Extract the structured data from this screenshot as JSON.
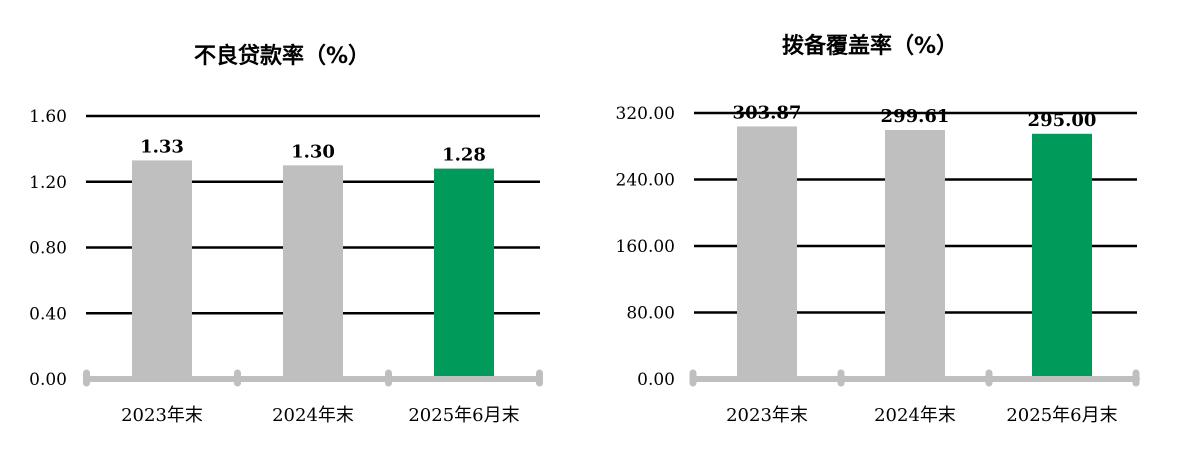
{
  "colors": {
    "highlight": "#009a5a",
    "base": "#bfbfbf",
    "grid": "#000000",
    "axis": "#bfbfbf"
  },
  "chart_data": [
    {
      "type": "bar",
      "title": "不良贷款率（%）",
      "categories": [
        "2023年末",
        "2024年末",
        "2025年6月末"
      ],
      "values": [
        1.33,
        1.3,
        1.28
      ],
      "value_labels": [
        "1.33",
        "1.30",
        "1.28"
      ],
      "y_ticks": [
        "0.00",
        "0.40",
        "0.80",
        "1.20",
        "1.60"
      ],
      "ylim": [
        0,
        1.6
      ],
      "xlabel": "",
      "ylabel": "",
      "grid": true,
      "highlight_index": 2
    },
    {
      "type": "bar",
      "title": "拨备覆盖率（%）",
      "categories": [
        "2023年末",
        "2024年末",
        "2025年6月末"
      ],
      "values": [
        303.87,
        299.61,
        295.0
      ],
      "value_labels": [
        "303.87",
        "299.61",
        "295.00"
      ],
      "y_ticks": [
        "0.00",
        "80.00",
        "160.00",
        "240.00",
        "320.00"
      ],
      "ylim": [
        0,
        320
      ],
      "xlabel": "",
      "ylabel": "",
      "grid": true,
      "highlight_index": 2
    }
  ]
}
